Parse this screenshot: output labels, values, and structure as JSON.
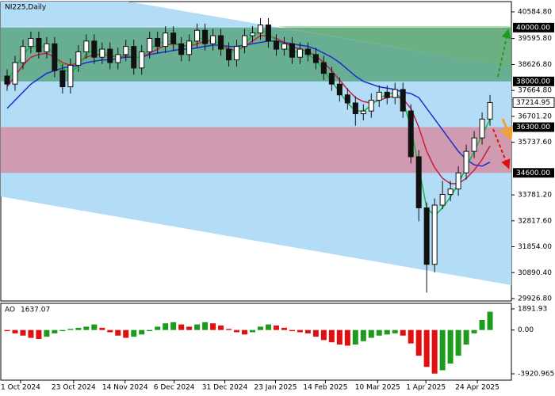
{
  "chart_data": {
    "type": "candlestick",
    "title": "NI225,Daily",
    "xlim": [
      -0.8,
      63.7
    ],
    "xticks": [
      {
        "value": 1.7,
        "label": "1 Oct 2024"
      },
      {
        "value": 8.4,
        "label": "23 Oct 2024"
      },
      {
        "value": 14.9,
        "label": "14 Nov 2024"
      },
      {
        "value": 21.1,
        "label": "6 Dec 2024"
      },
      {
        "value": 27.5,
        "label": "31 Dec 2024"
      },
      {
        "value": 33.9,
        "label": "23 Jan 2025"
      },
      {
        "value": 40.2,
        "label": "14 Feb 2025"
      },
      {
        "value": 46.8,
        "label": "10 Mar 2025"
      },
      {
        "value": 52.9,
        "label": "1 Apr 2025"
      },
      {
        "value": 59.4,
        "label": "24 Apr 2025"
      }
    ],
    "ylim": [
      29838,
      40968
    ],
    "yticks": [
      {
        "value": 40584.8,
        "label": "40584.80"
      },
      {
        "value": 39595.8,
        "label": "39595.80"
      },
      {
        "value": 38626.8,
        "label": "38626.80"
      },
      {
        "value": 37664.8,
        "label": "37664.80"
      },
      {
        "value": 36701.2,
        "label": "36701.20"
      },
      {
        "value": 35737.6,
        "label": "35737.60"
      },
      {
        "value": 33781.2,
        "label": "33781.20"
      },
      {
        "value": 32817.6,
        "label": "32817.60"
      },
      {
        "value": 31854,
        "label": "31854.00"
      },
      {
        "value": 30890.4,
        "label": "30890.40"
      },
      {
        "value": 29926.8,
        "label": "29926.80"
      }
    ],
    "levels": [
      {
        "value": 40000,
        "label": "40000.00"
      },
      {
        "value": 38000,
        "label": "38000.00"
      },
      {
        "value": 36300,
        "label": "36300.00"
      },
      {
        "value": 34600,
        "label": "34600.00"
      }
    ],
    "zones": [
      {
        "from": 40000,
        "to": 38000,
        "color": "#4f9f72"
      },
      {
        "from": 36300,
        "to": 34600,
        "color": "#d9869a"
      }
    ],
    "candle_color": "#111111",
    "open": [
      38200,
      37900,
      38700,
      39300,
      39600,
      39100,
      39400,
      38400,
      37800,
      38600,
      39100,
      39500,
      38900,
      39200,
      38700,
      39000,
      39300,
      38500,
      39100,
      39600,
      39300,
      39800,
      39400,
      39000,
      39500,
      39900,
      39400,
      39700,
      39200,
      38800,
      39300,
      39700,
      39800,
      40100,
      39500,
      39200,
      39400,
      38900,
      39200,
      39000,
      38700,
      38300,
      37900,
      37500,
      37200,
      36800,
      36900,
      37300,
      37600,
      37400,
      37700,
      36900,
      35200,
      33300,
      31200,
      33400,
      33800,
      34000,
      34600,
      35400,
      35900,
      36600
    ],
    "high": [
      38450,
      38950,
      39550,
      39850,
      39850,
      39650,
      39650,
      38650,
      38850,
      39350,
      39750,
      39750,
      39450,
      39450,
      39250,
      39550,
      39550,
      39350,
      39850,
      39850,
      40050,
      40050,
      39650,
      39750,
      40150,
      40150,
      39950,
      39950,
      39450,
      39550,
      39950,
      40050,
      40350,
      40350,
      39750,
      39650,
      39650,
      39450,
      39450,
      39250,
      38950,
      38550,
      38150,
      37750,
      37450,
      37150,
      37550,
      37850,
      37850,
      37950,
      37950,
      37150,
      35450,
      33500,
      33650,
      34300,
      34300,
      34850,
      35650,
      36150,
      36850,
      37500
    ],
    "low": [
      37650,
      37650,
      38450,
      39050,
      38850,
      38850,
      38150,
      37550,
      37550,
      38350,
      38850,
      38650,
      38650,
      38450,
      38450,
      38750,
      38250,
      38250,
      38850,
      39050,
      39050,
      39150,
      38750,
      38750,
      39250,
      39150,
      39150,
      38950,
      38550,
      38550,
      39050,
      39450,
      39550,
      39250,
      38950,
      38950,
      38650,
      38650,
      38750,
      38450,
      38050,
      37650,
      37250,
      36950,
      36350,
      36550,
      36650,
      37050,
      37150,
      37150,
      36650,
      34950,
      32800,
      30150,
      30900,
      33250,
      33550,
      33750,
      34350,
      35150,
      35650,
      36350
    ],
    "close": [
      37900,
      38700,
      39300,
      39600,
      39100,
      39400,
      38400,
      37800,
      38600,
      39100,
      39500,
      38900,
      39200,
      38700,
      39000,
      39300,
      38500,
      39100,
      39600,
      39300,
      39800,
      39400,
      39000,
      39500,
      39900,
      39400,
      39700,
      39200,
      38800,
      39300,
      39700,
      39800,
      40100,
      39500,
      39200,
      39400,
      38900,
      39200,
      39000,
      38700,
      38300,
      37900,
      37500,
      37200,
      36800,
      36900,
      37300,
      37600,
      37400,
      37700,
      36900,
      35200,
      33300,
      31200,
      33400,
      33800,
      34000,
      34600,
      35400,
      35900,
      36600,
      37214.95
    ],
    "series": [
      {
        "color": "#1a2fd0",
        "values": [
          37000,
          37300,
          37600,
          37900,
          38100,
          38300,
          38400,
          38500,
          38550,
          38600,
          38700,
          38750,
          38800,
          38800,
          38850,
          38900,
          38900,
          38900,
          39000,
          39050,
          39100,
          39150,
          39200,
          39200,
          39250,
          39300,
          39350,
          39350,
          39300,
          39300,
          39350,
          39400,
          39450,
          39500,
          39500,
          39450,
          39400,
          39350,
          39300,
          39200,
          39050,
          38900,
          38700,
          38450,
          38200,
          38000,
          37900,
          37800,
          37750,
          37700,
          37600,
          37550,
          37400,
          37000,
          36600,
          36200,
          35800,
          35400,
          35100,
          34900,
          34850,
          35000
        ]
      },
      {
        "color": "#c81e3c",
        "values": [
          37800,
          38200,
          38600,
          38900,
          39000,
          39050,
          38900,
          38700,
          38600,
          38700,
          38900,
          39000,
          39000,
          38950,
          38900,
          38950,
          38900,
          38900,
          39050,
          39200,
          39350,
          39400,
          39350,
          39300,
          39400,
          39500,
          39500,
          39400,
          39200,
          39150,
          39300,
          39500,
          39700,
          39700,
          39600,
          39450,
          39300,
          39200,
          39100,
          38950,
          38700,
          38400,
          38050,
          37700,
          37400,
          37250,
          37200,
          37300,
          37400,
          37450,
          37350,
          37000,
          36300,
          35400,
          34800,
          34400,
          34200,
          34200,
          34400,
          34700,
          35100,
          35600
        ]
      },
      {
        "color": "#12b83a",
        "values": [
          38000,
          38500,
          39000,
          39300,
          39300,
          39300,
          39000,
          38500,
          38300,
          38600,
          39000,
          39200,
          39100,
          39000,
          38900,
          39000,
          38900,
          38900,
          39200,
          39400,
          39500,
          39500,
          39300,
          39300,
          39600,
          39600,
          39500,
          39400,
          39100,
          39100,
          39400,
          39700,
          39900,
          39800,
          39500,
          39300,
          39100,
          39100,
          39000,
          38800,
          38400,
          38000,
          37600,
          37200,
          36900,
          36900,
          37100,
          37400,
          37500,
          37600,
          37300,
          36300,
          34800,
          33300,
          33000,
          33300,
          33700,
          34200,
          34800,
          35400,
          36000,
          36600
        ]
      }
    ],
    "oscillator": {
      "name": "AO",
      "up_color": "#1e9b1e",
      "down_color": "#e01010",
      "ylim": [
        2388,
        -4488
      ],
      "yticks": [
        {
          "value": 1891.93,
          "label": "1891.93"
        },
        {
          "value": 0,
          "label": "0.00"
        },
        -3920.965
      ],
      "values": [
        -100,
        -300,
        -500,
        -700,
        -800,
        -600,
        -300,
        -100,
        100,
        200,
        300,
        500,
        200,
        -200,
        -500,
        -700,
        -600,
        -400,
        -100,
        300,
        600,
        700,
        500,
        300,
        500,
        700,
        600,
        400,
        100,
        -200,
        -400,
        -200,
        300,
        500,
        400,
        200,
        -100,
        -200,
        -300,
        -600,
        -900,
        -1100,
        -1300,
        -1400,
        -1300,
        -1000,
        -700,
        -500,
        -400,
        -300,
        -500,
        -1200,
        -2300,
        -3300,
        -3900,
        -3600,
        -3000,
        -2300,
        -1300,
        -300,
        900,
        1637.07
      ]
    }
  }
}
